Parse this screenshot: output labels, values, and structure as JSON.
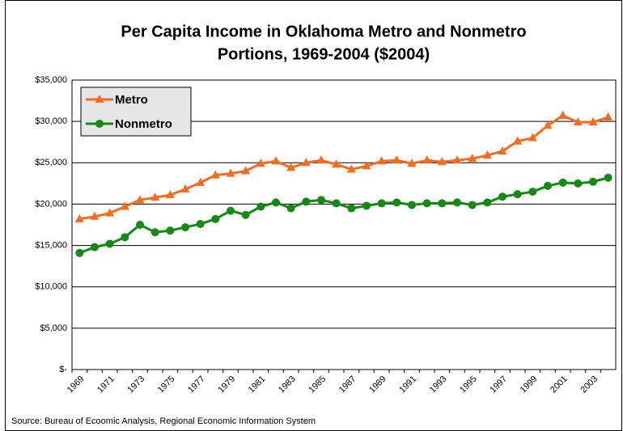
{
  "chart_data": {
    "type": "line",
    "title": [
      "Per Capita Income in Oklahoma Metro and Nonmetro",
      "Portions, 1969-2004 ($2004)"
    ],
    "source": "Source: Bureau of Ecoomic Analysis, Regional Economic Information System",
    "categories": [
      "1969",
      null,
      "1971",
      null,
      "1973",
      null,
      "1975",
      null,
      "1977",
      null,
      "1979",
      null,
      "1981",
      null,
      "1983",
      null,
      "1985",
      null,
      "1987",
      null,
      "1989",
      null,
      "1991",
      null,
      "1993",
      null,
      "1995",
      null,
      "1997",
      null,
      "1999",
      null,
      "2001",
      null,
      "2003",
      null
    ],
    "series": [
      {
        "name": "Metro",
        "color": "#f36c1f",
        "values": [
          18200,
          18500,
          18900,
          19700,
          20500,
          20800,
          21100,
          21800,
          22600,
          23500,
          23700,
          24000,
          24900,
          25200,
          24400,
          25000,
          25300,
          24800,
          24200,
          24600,
          25200,
          25300,
          24900,
          25300,
          25100,
          25300,
          25500,
          25900,
          26400,
          27600,
          28000,
          29500,
          30700,
          29900,
          29900,
          30500
        ]
      },
      {
        "name": "Nonmetro",
        "color": "#138a13",
        "values": [
          14100,
          14800,
          15200,
          16000,
          17500,
          16600,
          16800,
          17200,
          17600,
          18200,
          19200,
          18700,
          19700,
          20200,
          19500,
          20300,
          20500,
          20100,
          19500,
          19800,
          20100,
          20200,
          19900,
          20100,
          20100,
          20200,
          19900,
          20200,
          20900,
          21200,
          21500,
          22200,
          22600,
          22500,
          22700,
          23200
        ]
      }
    ],
    "ylim": [
      0,
      35000
    ],
    "yticks": [
      {
        "value": 0,
        "label": "$-"
      },
      {
        "value": 5000,
        "label": "$5,000"
      },
      {
        "value": 10000,
        "label": "$10,000"
      },
      {
        "value": 15000,
        "label": "$15,000"
      },
      {
        "value": 20000,
        "label": "$20,000"
      },
      {
        "value": 25000,
        "label": "$25,000"
      },
      {
        "value": 30000,
        "label": "$30,000"
      },
      {
        "value": 35000,
        "label": "$35,000"
      }
    ],
    "grid": true,
    "legend": "top-left"
  }
}
